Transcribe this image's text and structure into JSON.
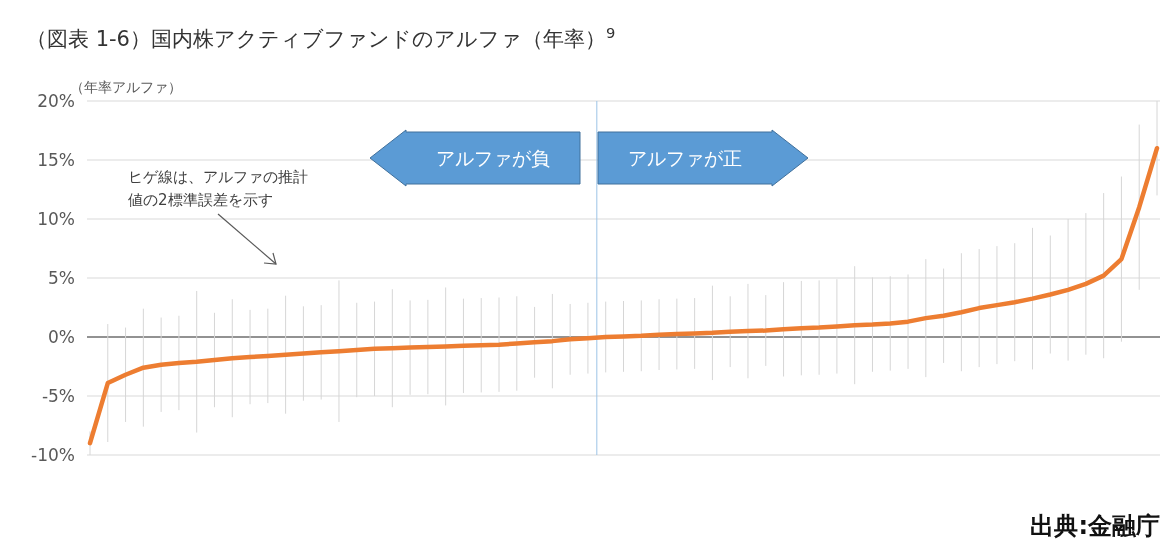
{
  "chart_data": {
    "type": "line",
    "title": "（図表 1-6）国内株アクティブファンドのアルファ（年率）$^{9}$",
    "ylabel": "（年率アルファ）",
    "categories": [
      null,
      null,
      null,
      null,
      null,
      null,
      null,
      null,
      null,
      null,
      null,
      null,
      null,
      null,
      null,
      null,
      null,
      null,
      null,
      null,
      null,
      null,
      null,
      null,
      null,
      null,
      null,
      null,
      null,
      null,
      null,
      null,
      null,
      null,
      null,
      null,
      null,
      null,
      null,
      null,
      null,
      null,
      null,
      null,
      null,
      null,
      null,
      null,
      null,
      null,
      null,
      null,
      null,
      null,
      null,
      null,
      null,
      null,
      null,
      null,
      null
    ],
    "series": [
      {
        "color": "#ed7d31",
        "values": [
          -9,
          -3.9,
          -3.2,
          -2.6,
          -2.35,
          -2.2,
          -2.1,
          -1.95,
          -1.8,
          -1.7,
          -1.6,
          -1.5,
          -1.4,
          -1.3,
          -1.2,
          -1.1,
          -1,
          -0.95,
          -0.9,
          -0.85,
          -0.8,
          -0.75,
          -0.7,
          -0.65,
          -0.55,
          -0.45,
          -0.35,
          -0.2,
          -0.1,
          0,
          0.05,
          0.1,
          0.2,
          0.25,
          0.3,
          0.35,
          0.45,
          0.5,
          0.55,
          0.65,
          0.75,
          0.8,
          0.9,
          1,
          1.05,
          1.15,
          1.3,
          1.6,
          1.8,
          2.1,
          2.45,
          2.7,
          2.95,
          3.25,
          3.6,
          4,
          4.5,
          5.2,
          6.6,
          11,
          16
        ],
        "errors": [
          1,
          5,
          4,
          5,
          4,
          4,
          6,
          4,
          5,
          4,
          4,
          5,
          4,
          4,
          6,
          4,
          4,
          5,
          4,
          4,
          5,
          4,
          4,
          4,
          4,
          3,
          4,
          3,
          3,
          3,
          3,
          3,
          3,
          3,
          3,
          4,
          3,
          4,
          3,
          4,
          4,
          4,
          4,
          5,
          4,
          4,
          4,
          5,
          4,
          5,
          5,
          5,
          5,
          6,
          5,
          6,
          6,
          7,
          7,
          7,
          4
        ]
      }
    ],
    "ylim": [
      -10,
      20
    ],
    "yticks": [
      {
        "value": -10,
        "label": "-10%"
      },
      {
        "value": -5,
        "label": "-5%"
      },
      {
        "value": 0,
        "label": "0%"
      },
      {
        "value": 5,
        "label": "5%"
      },
      {
        "value": 10,
        "label": "10%"
      },
      {
        "value": 15,
        "label": "15%"
      },
      {
        "value": 20,
        "label": "20%"
      }
    ],
    "grid": "y",
    "tick_labels": "y",
    "line_style": "solid",
    "marker": "none",
    "annotations": [
      "ヒゲ線は、アルファの推計値の2標準誤差を示す",
      "アルファが負",
      "アルファが正",
      "出典:金融庁"
    ]
  }
}
